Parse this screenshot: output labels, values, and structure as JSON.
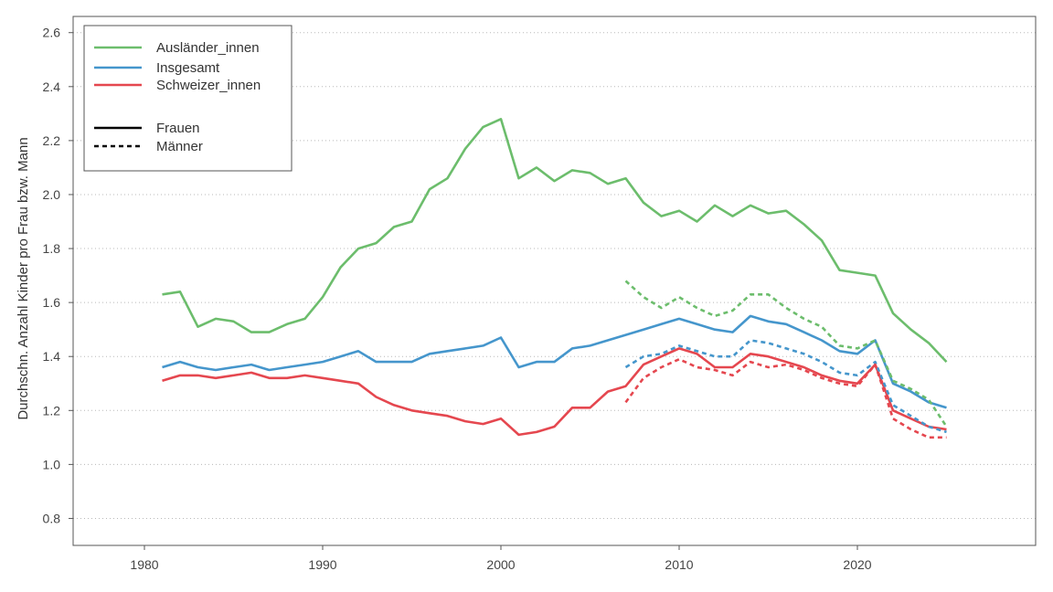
{
  "chart_data": {
    "type": "line",
    "title": "",
    "xlabel": "",
    "ylabel": "Durchschn. Anzahl Kinder pro Frau bzw. Mann",
    "xlim": [
      1976,
      2030
    ],
    "ylim": [
      0.7,
      2.66
    ],
    "x_ticks": [
      1980,
      1990,
      2000,
      2010,
      2020
    ],
    "y_ticks": [
      0.8,
      1.0,
      1.2,
      1.4,
      1.6,
      1.8,
      2.0,
      2.2,
      2.4,
      2.6
    ],
    "grid": "horizontal dotted",
    "legend_position": "top-left",
    "colors": {
      "Ausländer_innen": "#6cbd6c",
      "Insgesamt": "#4596cc",
      "Schweizer_innen": "#e5474f"
    },
    "legend": {
      "groups": [
        "Ausländer_innen",
        "Insgesamt",
        "Schweizer_innen"
      ],
      "styles": [
        "Frauen",
        "Männer"
      ]
    },
    "series": [
      {
        "group": "Ausländer_innen",
        "style": "Frauen",
        "x": [
          1981,
          1982,
          1983,
          1984,
          1985,
          1986,
          1987,
          1988,
          1989,
          1990,
          1991,
          1992,
          1993,
          1994,
          1995,
          1996,
          1997,
          1998,
          1999,
          2000,
          2001,
          2002,
          2003,
          2004,
          2005,
          2006,
          2007,
          2008,
          2009,
          2010,
          2011,
          2012,
          2013,
          2014,
          2015,
          2016,
          2017,
          2018,
          2019,
          2020,
          2021,
          2022,
          2023,
          2024,
          2025
        ],
        "y": [
          1.63,
          1.64,
          1.51,
          1.54,
          1.53,
          1.49,
          1.49,
          1.52,
          1.54,
          1.62,
          1.73,
          1.8,
          1.82,
          1.88,
          1.9,
          2.02,
          2.06,
          2.17,
          2.25,
          2.28,
          2.06,
          2.1,
          2.05,
          2.09,
          2.08,
          2.04,
          2.06,
          1.97,
          1.92,
          1.94,
          1.9,
          1.96,
          1.92,
          1.96,
          1.93,
          1.94,
          1.89,
          1.83,
          1.72,
          1.71,
          1.7,
          1.56,
          1.5,
          1.45,
          1.38
        ]
      },
      {
        "group": "Insgesamt",
        "style": "Frauen",
        "x": [
          1981,
          1982,
          1983,
          1984,
          1985,
          1986,
          1987,
          1988,
          1989,
          1990,
          1991,
          1992,
          1993,
          1994,
          1995,
          1996,
          1997,
          1998,
          1999,
          2000,
          2001,
          2002,
          2003,
          2004,
          2005,
          2006,
          2007,
          2008,
          2009,
          2010,
          2011,
          2012,
          2013,
          2014,
          2015,
          2016,
          2017,
          2018,
          2019,
          2020,
          2021,
          2022,
          2023,
          2024,
          2025
        ],
        "y": [
          1.36,
          1.38,
          1.36,
          1.35,
          1.36,
          1.37,
          1.35,
          1.36,
          1.37,
          1.38,
          1.4,
          1.42,
          1.38,
          1.38,
          1.38,
          1.41,
          1.42,
          1.43,
          1.44,
          1.47,
          1.36,
          1.38,
          1.38,
          1.43,
          1.44,
          1.46,
          1.48,
          1.5,
          1.52,
          1.54,
          1.52,
          1.5,
          1.49,
          1.55,
          1.53,
          1.52,
          1.49,
          1.46,
          1.42,
          1.41,
          1.46,
          1.3,
          1.27,
          1.23,
          1.21
        ]
      },
      {
        "group": "Schweizer_innen",
        "style": "Frauen",
        "x": [
          1981,
          1982,
          1983,
          1984,
          1985,
          1986,
          1987,
          1988,
          1989,
          1990,
          1991,
          1992,
          1993,
          1994,
          1995,
          1996,
          1997,
          1998,
          1999,
          2000,
          2001,
          2002,
          2003,
          2004,
          2005,
          2006,
          2007,
          2008,
          2009,
          2010,
          2011,
          2012,
          2013,
          2014,
          2015,
          2016,
          2017,
          2018,
          2019,
          2020,
          2021,
          2022,
          2023,
          2024,
          2025
        ],
        "y": [
          1.31,
          1.33,
          1.33,
          1.32,
          1.33,
          1.34,
          1.32,
          1.32,
          1.33,
          1.32,
          1.31,
          1.3,
          1.25,
          1.22,
          1.2,
          1.19,
          1.18,
          1.16,
          1.15,
          1.17,
          1.11,
          1.12,
          1.14,
          1.21,
          1.21,
          1.27,
          1.29,
          1.37,
          1.4,
          1.43,
          1.41,
          1.36,
          1.36,
          1.41,
          1.4,
          1.38,
          1.36,
          1.33,
          1.31,
          1.3,
          1.37,
          1.2,
          1.17,
          1.14,
          1.13
        ]
      },
      {
        "group": "Ausländer_innen",
        "style": "Männer",
        "x": [
          2007,
          2008,
          2009,
          2010,
          2011,
          2012,
          2013,
          2014,
          2015,
          2016,
          2017,
          2018,
          2019,
          2020,
          2021,
          2022,
          2023,
          2024,
          2025
        ],
        "y": [
          1.68,
          1.62,
          1.58,
          1.62,
          1.58,
          1.55,
          1.57,
          1.63,
          1.63,
          1.58,
          1.54,
          1.51,
          1.44,
          1.43,
          1.46,
          1.31,
          1.28,
          1.24,
          1.14
        ]
      },
      {
        "group": "Insgesamt",
        "style": "Männer",
        "x": [
          2007,
          2008,
          2009,
          2010,
          2011,
          2012,
          2013,
          2014,
          2015,
          2016,
          2017,
          2018,
          2019,
          2020,
          2021,
          2022,
          2023,
          2024,
          2025
        ],
        "y": [
          1.36,
          1.4,
          1.41,
          1.44,
          1.42,
          1.4,
          1.4,
          1.46,
          1.45,
          1.43,
          1.41,
          1.38,
          1.34,
          1.33,
          1.38,
          1.22,
          1.18,
          1.14,
          1.12
        ]
      },
      {
        "group": "Schweizer_innen",
        "style": "Männer",
        "x": [
          2007,
          2008,
          2009,
          2010,
          2011,
          2012,
          2013,
          2014,
          2015,
          2016,
          2017,
          2018,
          2019,
          2020,
          2021,
          2022,
          2023,
          2024,
          2025
        ],
        "y": [
          1.23,
          1.32,
          1.36,
          1.39,
          1.36,
          1.35,
          1.33,
          1.38,
          1.36,
          1.37,
          1.35,
          1.32,
          1.3,
          1.29,
          1.37,
          1.17,
          1.13,
          1.1,
          1.1
        ]
      }
    ]
  }
}
